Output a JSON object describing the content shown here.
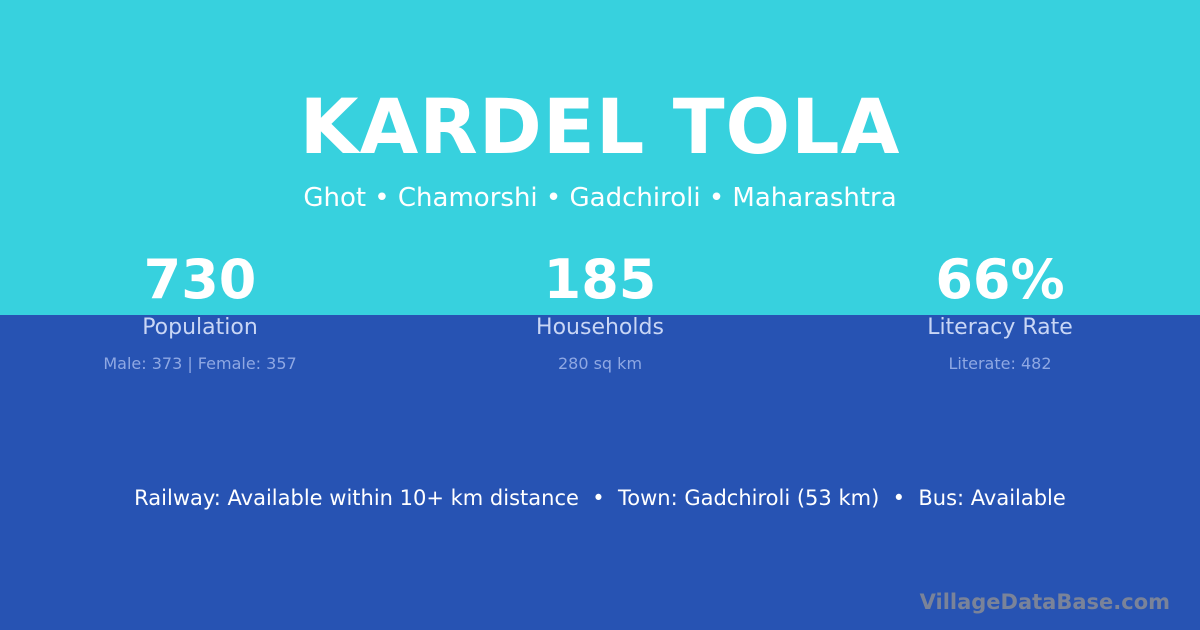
{
  "title": "KARDEL TOLA",
  "subtitle": "Ghot • Chamorshi • Gadchiroli • Maharashtra",
  "stats": [
    {
      "value": "730",
      "label": "Population",
      "detail": "Male: 373 | Female: 357"
    },
    {
      "value": "185",
      "label": "Households",
      "detail": "280 sq km"
    },
    {
      "value": "66%",
      "label": "Literacy Rate",
      "detail": "Literate: 482"
    }
  ],
  "info_line": "Railway: Available within 10+ km distance  •  Town: Gadchiroli (53 km)  •  Bus: Available",
  "watermark": "VillageDataBase.com",
  "colors": {
    "top": "#37d1de",
    "bottom": "#2753b3"
  }
}
